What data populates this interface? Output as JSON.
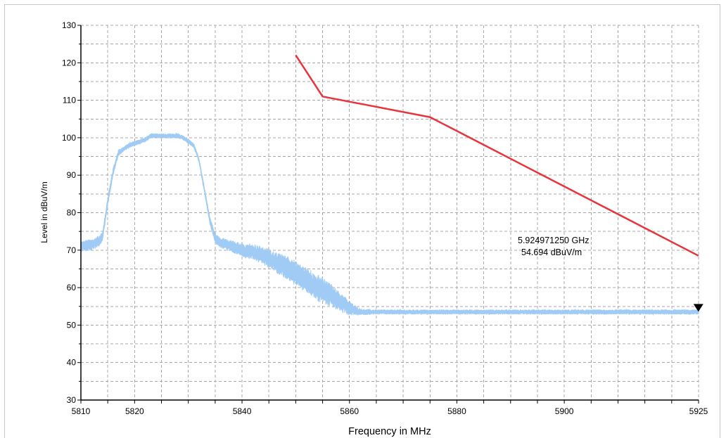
{
  "chart_data": {
    "type": "line",
    "xlabel": "Frequency in MHz",
    "ylabel": "Level in dBuV/m",
    "xlim": [
      5810,
      5925
    ],
    "ylim": [
      30,
      130
    ],
    "x_ticks": [
      5810,
      5820,
      5840,
      5860,
      5880,
      5900,
      5925
    ],
    "y_ticks": [
      30,
      40,
      50,
      60,
      70,
      80,
      90,
      100,
      110,
      120,
      130
    ],
    "grid": true,
    "marker": {
      "x": 5924.97125,
      "y": 54.694,
      "line1": "5.924971250 GHz",
      "line2": "54.694 dBuV/m"
    },
    "series": [
      {
        "color": "#9fcbf5",
        "style": "noisy-trace",
        "x": [
          5810,
          5812,
          5813.5,
          5814,
          5815,
          5816,
          5817,
          5818,
          5819,
          5820,
          5821,
          5822,
          5823,
          5824,
          5825,
          5826,
          5827,
          5828,
          5829,
          5830,
          5831,
          5832,
          5833,
          5834,
          5835,
          5836,
          5838,
          5840,
          5842,
          5844,
          5846,
          5848,
          5850,
          5852,
          5854,
          5856,
          5858,
          5860,
          5862,
          5865,
          5870,
          5875,
          5880,
          5885,
          5890,
          5895,
          5900,
          5905,
          5910,
          5915,
          5920,
          5925
        ],
        "values": [
          71,
          71.5,
          72.5,
          73.5,
          83,
          91,
          96,
          97,
          98,
          98.5,
          99,
          99.5,
          100.5,
          100.5,
          100.5,
          100.5,
          100.5,
          100.5,
          100,
          99,
          98,
          94,
          86,
          78,
          73,
          72,
          71,
          70,
          69.5,
          68.5,
          67,
          65.5,
          64,
          62,
          60,
          58.5,
          56.5,
          54.5,
          53.5,
          53.5,
          53.5,
          53.5,
          53.5,
          53.5,
          53.5,
          53.5,
          53.5,
          53.5,
          53.5,
          53.5,
          53.5,
          53.5
        ],
        "noise": [
          1.4,
          1.4,
          1.4,
          1.2,
          1.2,
          1.0,
          0.8,
          0.6,
          0.6,
          0.6,
          0.6,
          0.6,
          0.6,
          0.6,
          0.6,
          0.6,
          0.6,
          0.6,
          0.6,
          0.6,
          0.6,
          0.6,
          0.8,
          1.0,
          1.2,
          1.3,
          1.5,
          1.8,
          2.0,
          2.3,
          2.6,
          3.0,
          3.2,
          3.3,
          3.3,
          3.0,
          2.6,
          1.8,
          0.8,
          0.6,
          0.6,
          0.6,
          0.6,
          0.6,
          0.6,
          0.6,
          0.6,
          0.6,
          0.6,
          0.6,
          0.6,
          0.6
        ]
      },
      {
        "color": "#e8343c",
        "style": "limit-line",
        "x": [
          5850,
          5855,
          5875,
          5925
        ],
        "values": [
          122,
          111,
          105.5,
          68.5
        ]
      }
    ]
  }
}
